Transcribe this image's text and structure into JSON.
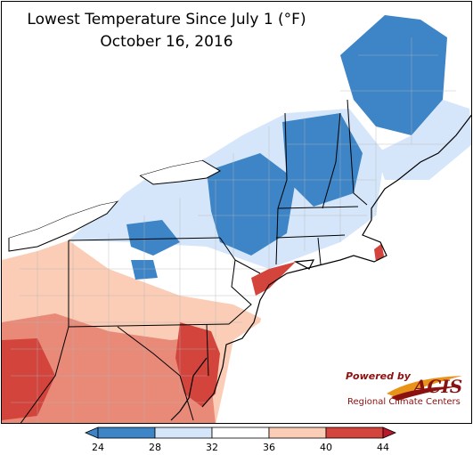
{
  "title_line1": "Lowest Temperature Since July 1 (°F)",
  "title_line2": "October 16, 2016",
  "logo": {
    "powered_by": "Powered by",
    "name": "ACIS",
    "subtitle": "Regional Climate Centers"
  },
  "legend": {
    "ticks": [
      "24",
      "28",
      "32",
      "36",
      "40",
      "44"
    ],
    "bins": [
      {
        "range": "24-28",
        "color": "#3d85c6"
      },
      {
        "range": "28-32",
        "color": "#d6e6fa"
      },
      {
        "range": "32-36",
        "color": "#ffffff"
      },
      {
        "range": "36-40",
        "color": "#fbcdb6"
      },
      {
        "range": "40-44",
        "color": "#d2443c"
      }
    ],
    "below_color": "#3d85c6",
    "above_color": "#b8182b"
  },
  "colors": {
    "cold": "#3d85c6",
    "cool": "#d6e6fa",
    "neutral": "#ffffff",
    "mild": "#fbcdb6",
    "warm": "#e98a78",
    "hot": "#d2443c",
    "hottest": "#b8182b",
    "border": "#000000",
    "county": "#9a9a9a"
  }
}
